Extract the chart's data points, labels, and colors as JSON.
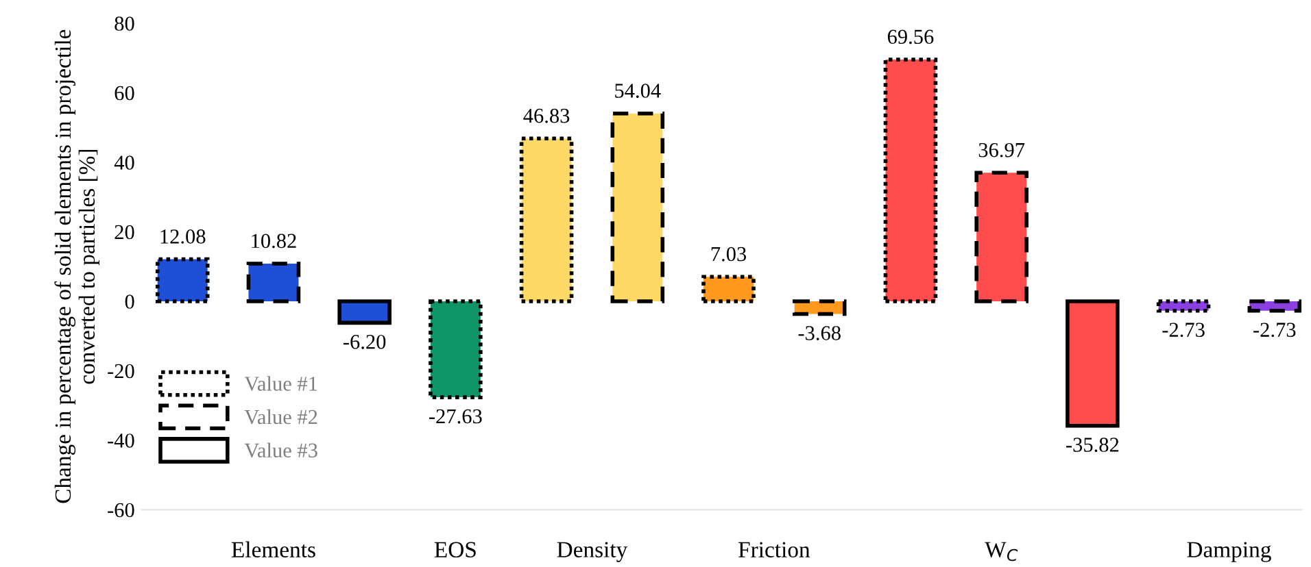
{
  "chart_data": {
    "type": "bar",
    "ylabel": "Change in percentage of solid elements in projectile converted to particles [%]",
    "categories": [
      null,
      null,
      null,
      null,
      null,
      null,
      null,
      null,
      null,
      null,
      null,
      null,
      null
    ],
    "annotations": [
      "Elements",
      "EOS",
      "Density",
      "Friction",
      "W$_{C}$",
      "Damping"
    ],
    "series": [
      {
        "name": "Value #1",
        "line_style": "dotted",
        "colors": [
          "#1f4fd6",
          null,
          null,
          "#0f9468",
          "#ffd966",
          null,
          "#ff9a1f",
          null,
          "#ff4d4d",
          null,
          null,
          "#8a3fe0",
          null
        ],
        "values": [
          12.08,
          null,
          null,
          -27.63,
          46.83,
          null,
          7.03,
          null,
          69.56,
          null,
          null,
          -2.73,
          null
        ],
        "value_labels": [
          "12.08",
          null,
          null,
          "-27.63",
          "46.83",
          null,
          "7.03",
          null,
          "69.56",
          null,
          null,
          "-2.73",
          null
        ]
      },
      {
        "name": "Value #2",
        "line_style": "dashed",
        "colors": [
          null,
          "#1f4fd6",
          null,
          null,
          null,
          "#ffd966",
          null,
          "#ff9a1f",
          null,
          "#ff4d4d",
          null,
          null,
          "#8a3fe0"
        ],
        "values": [
          null,
          10.82,
          null,
          null,
          null,
          54.04,
          null,
          -3.68,
          null,
          36.97,
          null,
          null,
          -2.73
        ],
        "value_labels": [
          null,
          "10.82",
          null,
          null,
          null,
          "54.04",
          null,
          "-3.68",
          null,
          "36.97",
          null,
          null,
          "-2.73"
        ]
      },
      {
        "name": "Value #3",
        "line_style": "solid",
        "colors": [
          null,
          null,
          "#1f4fd6",
          null,
          null,
          null,
          null,
          null,
          null,
          null,
          "#ff4d4d",
          null,
          null
        ],
        "values": [
          null,
          null,
          -6.2,
          null,
          null,
          null,
          null,
          null,
          null,
          null,
          -35.82,
          null,
          null
        ],
        "value_labels": [
          null,
          null,
          "-6.20",
          null,
          null,
          null,
          null,
          null,
          null,
          null,
          "-35.82",
          null,
          null
        ]
      }
    ],
    "ylim": [
      -60,
      80
    ],
    "yticks": [
      -60,
      -40,
      -20,
      0,
      20,
      40,
      60,
      80
    ],
    "legend": "bottom left",
    "grid": false
  }
}
